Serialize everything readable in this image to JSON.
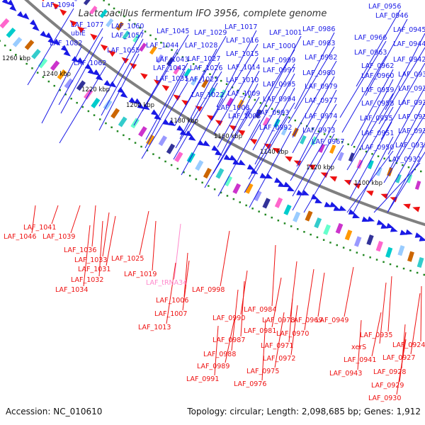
{
  "title": "Lactobacillus fermentum IFO 3956, complete genome",
  "accession": "Accession: NC_010610",
  "topology": "Topology: circular; Length: 2,098,685 bp; Genes: 1,912",
  "colors": {
    "forward": "#1a1ae6",
    "reverse": "#ee1111",
    "trna": "#ff88cc",
    "backbone": "#808080",
    "gc_dots": "#228822"
  },
  "ticks": [
    "1260 kbp",
    "1240 kbp",
    "1220 kbp",
    "1200 kbp",
    "1180 kbp",
    "1160 kbp",
    "1140 kbp",
    "1120 kbp",
    "1100 kbp"
  ],
  "labels_top": [
    "LAF_1094",
    "LAF_1077",
    "ubiE",
    "LAF_1082",
    "LAF_1062",
    "LAF_1060",
    "LAF_1057",
    "LAF_1055",
    "LAF_1045",
    "LAF_1044",
    "LAF_1043",
    "LAF_1042",
    "LAF_1035",
    "LAF_1029",
    "LAF_1028",
    "LAF_1027",
    "LAF_1026",
    "LAF_1023",
    "LAF_1022",
    "LAF_1017",
    "LAF_1016",
    "LAF_1015",
    "LAF_1014",
    "LAF_1010",
    "LAF_1009",
    "LAF_1008",
    "LAF_1005",
    "LAF_1001",
    "LAF_1000",
    "LAF_0999",
    "LAF_0997",
    "LAF_0995",
    "LAF_0994",
    "LAF_0993",
    "LAF_0992",
    "LAF_0986",
    "LAF_0983",
    "LAF_0982",
    "LAF_0980",
    "LAF_0979",
    "LAF_0977",
    "LAF_0974",
    "LAF_0973",
    "LAF_0967",
    "LAF_0966",
    "LAF_0963",
    "LAF_0962",
    "LAF_0960",
    "LAF_0959",
    "LAF_0958",
    "LAF_0955",
    "LAF_0951",
    "LAF_0950",
    "LAF_0956",
    "LAF_0946",
    "LAF_0945",
    "LAF_0944",
    "LAF_0942",
    "LAF_0939",
    "LAF_0938",
    "LAF_0937",
    "LAF_0936",
    "LAF_0934",
    "LAF_0933",
    "LAF_0932"
  ],
  "labels_bottom": [
    "LAF_1046",
    "LAF_1041",
    "LAF_1039",
    "LAF_1036",
    "LAF_1033",
    "LAF_1031",
    "LAF_1032",
    "LAF_1034",
    "LAF_1025",
    "LAF_1019",
    "LAF_tRNA34",
    "LAF_1013",
    "LAF_1006",
    "LAF_1007",
    "LAF_0998",
    "LAF_0984",
    "LAF_0990",
    "LAF_0981",
    "LAF_0987",
    "LAF_0988",
    "LAF_0989",
    "LAF_0991",
    "LAF_0978",
    "LAF_0970",
    "LAF_0971",
    "LAF_0972",
    "LAF_0975",
    "LAF_0976",
    "LAF_0969",
    "LAF_0949",
    "LAF_0935",
    "xerS",
    "LAF_0941",
    "LAF_0943",
    "LAF_0924",
    "LAF_0927",
    "LAF_0928",
    "LAF_0929",
    "LAF_0930"
  ]
}
